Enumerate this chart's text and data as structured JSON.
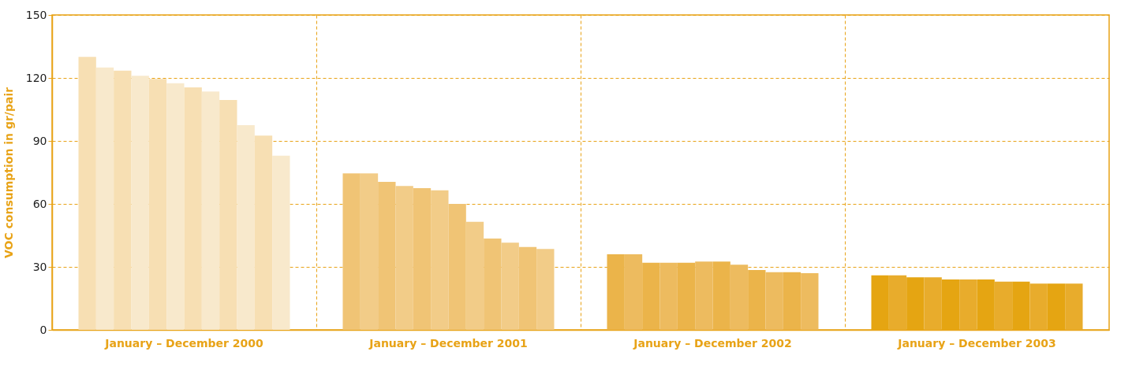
{
  "chart_data": {
    "type": "bar",
    "ylabel": "VOC consumption in gr/pair",
    "categories": [
      "January – December 2000",
      "January – December 2001",
      "January – December 2002",
      "January – December 2003"
    ],
    "series": [
      {
        "colors": [
          "#f7dfb3",
          "#f0c475",
          "#ebb44a",
          "#e5a512"
        ],
        "values": [
          130,
          74.5,
          36,
          26
        ]
      },
      {
        "colors": [
          "#f8e9cc",
          "#f2cc88",
          "#edbb5f",
          "#e8ac2c"
        ],
        "values": [
          125,
          74.5,
          36,
          26
        ]
      },
      {
        "colors": [
          "#f7dfb3",
          "#f0c475",
          "#ebb44a",
          "#e5a512"
        ],
        "values": [
          123.5,
          70.5,
          32,
          25
        ]
      },
      {
        "colors": [
          "#f8e9cc",
          "#f2cc88",
          "#edbb5f",
          "#e8ac2c"
        ],
        "values": [
          121,
          68.5,
          32,
          25
        ]
      },
      {
        "colors": [
          "#f7dfb3",
          "#f0c475",
          "#ebb44a",
          "#e5a512"
        ],
        "values": [
          119.5,
          67.5,
          32,
          24
        ]
      },
      {
        "colors": [
          "#f8e9cc",
          "#f2cc88",
          "#edbb5f",
          "#e8ac2c"
        ],
        "values": [
          117.5,
          66.5,
          32.5,
          24
        ]
      },
      {
        "colors": [
          "#f7dfb3",
          "#f0c475",
          "#ebb44a",
          "#e5a512"
        ],
        "values": [
          115.5,
          60,
          32.5,
          24
        ]
      },
      {
        "colors": [
          "#f8e9cc",
          "#f2cc88",
          "#edbb5f",
          "#e8ac2c"
        ],
        "values": [
          113.5,
          51.5,
          31,
          23
        ]
      },
      {
        "colors": [
          "#f7dfb3",
          "#f0c475",
          "#ebb44a",
          "#e5a512"
        ],
        "values": [
          109.5,
          43.5,
          28.5,
          23
        ]
      },
      {
        "colors": [
          "#f8e9cc",
          "#f2cc88",
          "#edbb5f",
          "#e8ac2c"
        ],
        "values": [
          97.5,
          41.5,
          27.5,
          22
        ]
      },
      {
        "colors": [
          "#f7dfb3",
          "#f0c475",
          "#ebb44a",
          "#e5a512"
        ],
        "values": [
          92.5,
          39.5,
          27.5,
          22
        ]
      },
      {
        "colors": [
          "#f8e9cc",
          "#f2cc88",
          "#edbb5f",
          "#e8ac2c"
        ],
        "values": [
          83,
          38.5,
          27,
          22
        ]
      }
    ],
    "ylim": [
      0,
      150
    ],
    "yticks": [
      0,
      30,
      60,
      90,
      120,
      150
    ],
    "grid": true
  }
}
